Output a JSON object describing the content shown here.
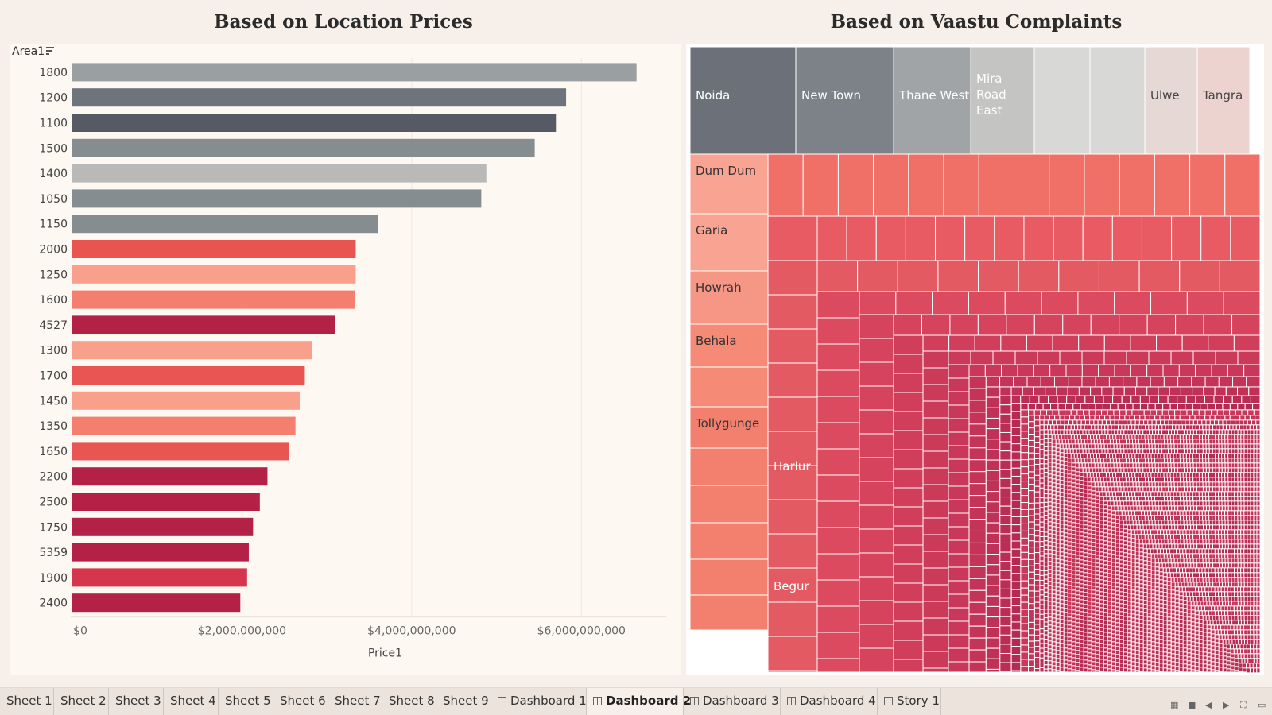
{
  "dashboard": {
    "left_title": "Based on Location Prices",
    "right_title": "Based on Vaastu Complaints"
  },
  "chart_data": [
    {
      "type": "bar",
      "orientation": "horizontal",
      "title": "Based on Location Prices",
      "y_header": "Area1",
      "xlabel": "Price1",
      "categories": [
        "1800",
        "1200",
        "1100",
        "1500",
        "1400",
        "1050",
        "1150",
        "2000",
        "1250",
        "1600",
        "4527",
        "1300",
        "1700",
        "1450",
        "1350",
        "1650",
        "2200",
        "2500",
        "1750",
        "5359",
        "1900",
        "2400"
      ],
      "values": [
        6650000000,
        5820000000,
        5700000000,
        5450000000,
        4880000000,
        4820000000,
        3600000000,
        3340000000,
        3340000000,
        3330000000,
        3100000000,
        2830000000,
        2740000000,
        2680000000,
        2630000000,
        2550000000,
        2300000000,
        2210000000,
        2130000000,
        2080000000,
        2060000000,
        1980000000
      ],
      "colors": [
        "#9aa0a2",
        "#6e747c",
        "#555a64",
        "#868d91",
        "#b9bab8",
        "#868d91",
        "#868d91",
        "#e85550",
        "#f8a08c",
        "#f57f6f",
        "#b32147",
        "#f8a08c",
        "#e85552",
        "#f8a08c",
        "#f57f6f",
        "#e85552",
        "#b32147",
        "#b32147",
        "#b32147",
        "#b32147",
        "#d6354e",
        "#b32147"
      ],
      "xlim": [
        0,
        7000000000
      ],
      "xticks": [
        0,
        2000000000,
        4000000000,
        6000000000
      ],
      "xtick_labels": [
        "$0",
        "$2,000,000,000",
        "$4,000,000,000",
        "$6,000,000,000"
      ],
      "grid": true
    },
    {
      "type": "treemap",
      "title": "Based on Vaastu Complaints",
      "labeled_cells": [
        {
          "label": "Noida",
          "color": "#6b7079"
        },
        {
          "label": "New Town",
          "color": "#7c8288"
        },
        {
          "label": "Thane West",
          "color": "#a0a4a6"
        },
        {
          "label": "Mira Road East",
          "color": "#c4c4c2"
        },
        {
          "label": "",
          "color": "#d8d8d6"
        },
        {
          "label": "",
          "color": "#d8d8d6"
        },
        {
          "label": "Ulwe",
          "color": "#e5d8d5"
        },
        {
          "label": "Tangra",
          "color": "#ecd3cf"
        },
        {
          "label": "Dum Dum",
          "color": "#f9a493"
        },
        {
          "label": "Garia",
          "color": "#f9a493"
        },
        {
          "label": "Howrah",
          "color": "#f69684"
        },
        {
          "label": "Behala",
          "color": "#f58b77"
        },
        {
          "label": "Tollygunge",
          "color": "#f3806e"
        },
        {
          "label": "Harlur",
          "color": "#e35a62"
        },
        {
          "label": "Begur",
          "color": "#e35a62"
        }
      ]
    }
  ],
  "tabs": [
    {
      "label": "Sheet 1",
      "kind": "sheet"
    },
    {
      "label": "Sheet 2",
      "kind": "sheet"
    },
    {
      "label": "Sheet 3",
      "kind": "sheet"
    },
    {
      "label": "Sheet 4",
      "kind": "sheet"
    },
    {
      "label": "Sheet 5",
      "kind": "sheet"
    },
    {
      "label": "Sheet 6",
      "kind": "sheet"
    },
    {
      "label": "Sheet 7",
      "kind": "sheet"
    },
    {
      "label": "Sheet 8",
      "kind": "sheet"
    },
    {
      "label": "Sheet 9",
      "kind": "sheet"
    },
    {
      "label": "Dashboard 1",
      "kind": "dashboard"
    },
    {
      "label": "Dashboard 2",
      "kind": "dashboard",
      "active": true
    },
    {
      "label": "Dashboard 3",
      "kind": "dashboard"
    },
    {
      "label": "Dashboard 4",
      "kind": "dashboard"
    },
    {
      "label": "Story 1",
      "kind": "story"
    }
  ],
  "bottom_controls": [
    "film-strip-icon",
    "tabs-icon",
    "prev-icon",
    "next-icon",
    "fullscreen-icon",
    "presentation-icon"
  ]
}
